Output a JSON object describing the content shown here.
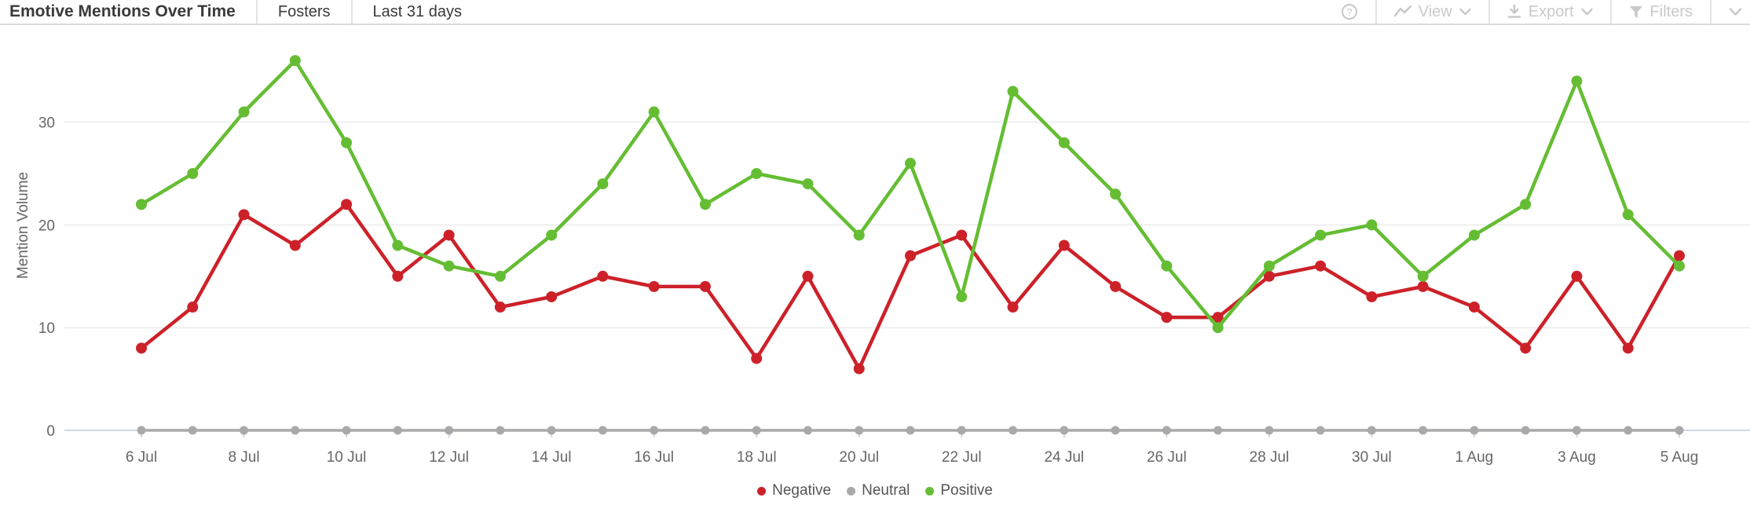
{
  "header": {
    "title": "Emotive Mentions Over Time",
    "dataset": "Fosters",
    "date_range": "Last 31 days",
    "toolbar": {
      "help_icon": "circle-question-icon",
      "view_label": "View",
      "export_label": "Export",
      "filters_label": "Filters"
    }
  },
  "chart_data": {
    "type": "line",
    "title": "Emotive Mentions Over Time",
    "xlabel": "",
    "ylabel": "Mention Volume",
    "ylim": [
      0,
      38
    ],
    "yticks": [
      0,
      10,
      20,
      30
    ],
    "grid": "horizontal",
    "legend_position": "bottom",
    "x": [
      "6 Jul",
      "7 Jul",
      "8 Jul",
      "9 Jul",
      "10 Jul",
      "11 Jul",
      "12 Jul",
      "13 Jul",
      "14 Jul",
      "15 Jul",
      "16 Jul",
      "17 Jul",
      "18 Jul",
      "19 Jul",
      "20 Jul",
      "21 Jul",
      "22 Jul",
      "23 Jul",
      "24 Jul",
      "25 Jul",
      "26 Jul",
      "27 Jul",
      "28 Jul",
      "29 Jul",
      "30 Jul",
      "31 Jul",
      "1 Aug",
      "2 Aug",
      "3 Aug",
      "4 Aug",
      "5 Aug"
    ],
    "x_tick_labels": [
      "6 Jul",
      "8 Jul",
      "10 Jul",
      "12 Jul",
      "14 Jul",
      "16 Jul",
      "18 Jul",
      "20 Jul",
      "22 Jul",
      "24 Jul",
      "26 Jul",
      "28 Jul",
      "30 Jul",
      "1 Aug",
      "3 Aug",
      "5 Aug"
    ],
    "series": [
      {
        "name": "Negative",
        "color": "#cd2129",
        "values": [
          8,
          12,
          21,
          18,
          22,
          15,
          19,
          12,
          13,
          15,
          14,
          14,
          7,
          15,
          6,
          17,
          19,
          12,
          18,
          14,
          11,
          11,
          15,
          16,
          13,
          14,
          12,
          8,
          15,
          8,
          17
        ]
      },
      {
        "name": "Neutral",
        "color": "#a9a9a9",
        "values": [
          0,
          0,
          0,
          0,
          0,
          0,
          0,
          0,
          0,
          0,
          0,
          0,
          0,
          0,
          0,
          0,
          0,
          0,
          0,
          0,
          0,
          0,
          0,
          0,
          0,
          0,
          0,
          0,
          0,
          0,
          0
        ]
      },
      {
        "name": "Positive",
        "color": "#65bd33",
        "values": [
          22,
          25,
          31,
          36,
          28,
          18,
          16,
          15,
          19,
          24,
          31,
          22,
          25,
          24,
          19,
          26,
          13,
          33,
          28,
          23,
          16,
          10,
          16,
          19,
          20,
          15,
          19,
          22,
          34,
          21,
          16
        ]
      }
    ],
    "axis_color": "#ccd9ea",
    "gridline_color": "#efefef",
    "tick_text_color": "#666666"
  }
}
